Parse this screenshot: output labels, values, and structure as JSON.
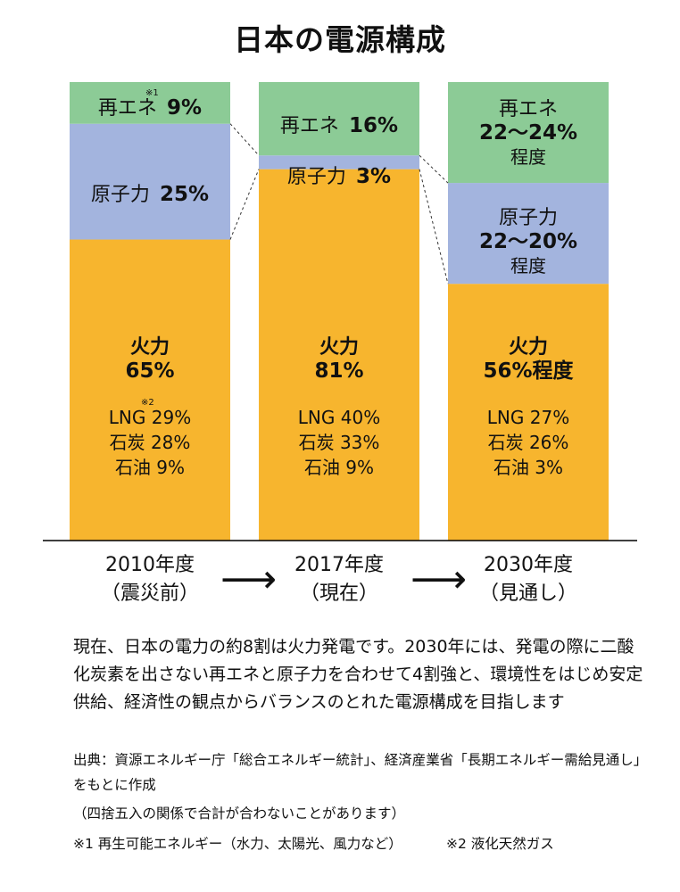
{
  "title": "日本の電源構成",
  "chart_data": {
    "type": "bar",
    "stacked": true,
    "title": "日本の電源構成",
    "ylim": [
      0,
      100
    ],
    "categories": [
      "2010年度（震災前）",
      "2017年度（現在）",
      "2030年度（見通し）"
    ],
    "series": [
      {
        "name": "火力",
        "values": [
          65,
          81,
          56
        ],
        "color": "#f7b52e"
      },
      {
        "name": "原子力",
        "values": [
          25,
          3,
          22
        ],
        "color": "#a3b4de"
      },
      {
        "name": "再エネ",
        "values": [
          9,
          16,
          22
        ],
        "color": "#8ccb96"
      }
    ],
    "bars": [
      {
        "x_line1": "2010年度",
        "x_line2": "（震災前）",
        "renew": {
          "line1": "再エネ",
          "pct": "9%",
          "note": "※1"
        },
        "nuclear": {
          "line1": "原子力",
          "pct": "25%"
        },
        "thermal": {
          "line1": "火力",
          "line2": "65%",
          "note": "※2",
          "breakdown": [
            "LNG 29%",
            "石炭 28%",
            "石油 9%"
          ]
        }
      },
      {
        "x_line1": "2017年度",
        "x_line2": "（現在）",
        "renew": {
          "line1": "再エネ",
          "pct": "16%"
        },
        "nuclear": {
          "line1": "原子力",
          "pct": "3%"
        },
        "thermal": {
          "line1": "火力",
          "line2": "81%",
          "breakdown": [
            "LNG 40%",
            "石炭 33%",
            "石油 9%"
          ]
        }
      },
      {
        "x_line1": "2030年度",
        "x_line2": "（見通し）",
        "renew": {
          "line1": "再エネ",
          "line2": "22～24%",
          "line3": "程度"
        },
        "nuclear": {
          "line1": "原子力",
          "line2": "22～20%",
          "line3": "程度"
        },
        "thermal": {
          "line1": "火力",
          "line2": "56%程度",
          "breakdown": [
            "LNG 27%",
            "石炭 26%",
            "石油 3%"
          ]
        }
      }
    ]
  },
  "arrow_glyph": "⟶",
  "description": "現在、日本の電力の約8割は火力発電です。2030年には、発電の際に二酸化炭素を出さない再エネと原子力を合わせて4割強と、環境性をはじめ安定供給、経済性の観点からバランスのとれた電源構成を目指します",
  "source": "出典：資源エネルギー庁「総合エネルギー統計」、経済産業省「長期エネルギー需給見通し」をもとに作成",
  "rounding_note": "（四捨五入の関係で合計が合わないことがあります）",
  "footnote1": "※1 再生可能エネルギー（水力、太陽光、風力など）",
  "footnote2": "※2 液化天然ガス"
}
